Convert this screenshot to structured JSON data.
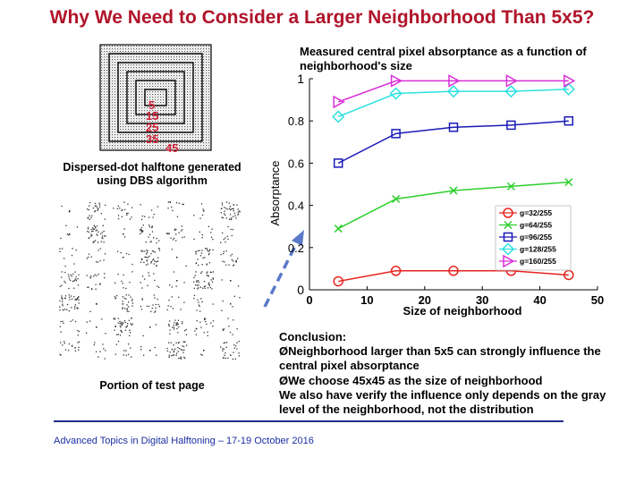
{
  "slide": {
    "title": "Why We Need to Consider a Larger Neighborhood Than 5x5?",
    "halftone_caption": "Dispersed-dot halftone generated using DBS algorithm",
    "test_page_caption": "Portion of test page",
    "nested_labels": [
      "5",
      "15",
      "25",
      "35",
      "45"
    ],
    "conclusion": {
      "heading": "Conclusion:",
      "lines": [
        "ØNeighborhood larger than 5x5 can strongly influence the central pixel absorptance",
        "ØWe choose 45x45 as the size of neighborhood",
        "We also have verify the influence only depends on the gray level of the neighborhood, not the distribution"
      ]
    },
    "footer": "Advanced Topics in Digital Halftoning – 17-19 October 2016"
  },
  "chart_data": {
    "type": "line",
    "title": "Measured central pixel absorptance as a function of neighborhood's size",
    "xlabel": "Size of neighborhood",
    "ylabel": "Absorptance",
    "xlim": [
      0,
      50
    ],
    "ylim": [
      0,
      1
    ],
    "xticks": [
      "0",
      "10",
      "20",
      "30",
      "40",
      "50"
    ],
    "yticks": [
      "0",
      "0.2",
      "0.4",
      "0.6",
      "0.8",
      "1"
    ],
    "legend_position": "right",
    "x": [
      5,
      15,
      25,
      35,
      45
    ],
    "series": [
      {
        "name": "g=32/255",
        "color": "#e8231e",
        "marker": "circle",
        "values": [
          0.04,
          0.09,
          0.09,
          0.09,
          0.07
        ]
      },
      {
        "name": "g=64/255",
        "color": "#2ecf2e",
        "marker": "x",
        "values": [
          0.29,
          0.43,
          0.47,
          0.49,
          0.51
        ]
      },
      {
        "name": "g=96/255",
        "color": "#1a1ab8",
        "marker": "square",
        "values": [
          0.6,
          0.74,
          0.77,
          0.78,
          0.8
        ]
      },
      {
        "name": "g=128/255",
        "color": "#2ee0e0",
        "marker": "diamond",
        "values": [
          0.82,
          0.93,
          0.94,
          0.94,
          0.95
        ]
      },
      {
        "name": "g=160/255",
        "color": "#d92ed9",
        "marker": "triangle",
        "values": [
          0.89,
          0.99,
          0.99,
          0.99,
          0.99
        ]
      }
    ]
  }
}
